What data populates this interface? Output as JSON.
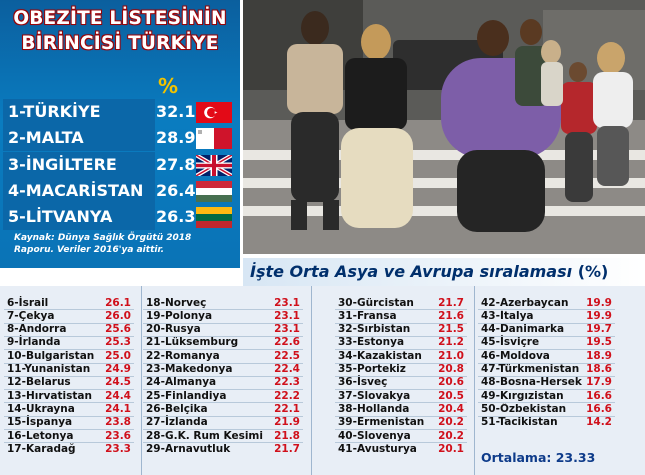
{
  "chart_data": [
    {
      "type": "table",
      "title": "OBEZİTE LİSTESİNİN BİRİNCİSİ TÜRKİYE",
      "title_line1": "OBEZİTE LİSTESİNİN",
      "title_line2": "BİRİNCİSİ TÜRKİYE",
      "value_header": "%",
      "rows": [
        {
          "label": "1-TÜRKİYE",
          "value": "32.1",
          "flag": "turkey-flag-icon"
        },
        {
          "label": "2-MALTA",
          "value": "28.9",
          "flag": "malta-flag-icon"
        },
        {
          "label": "3-İNGİLTERE",
          "value": "27.8",
          "flag": "uk-flag-icon"
        },
        {
          "label": "4-MACARİSTAN",
          "value": "26.4",
          "flag": "hungary-flag-icon"
        },
        {
          "label": "5-LİTVANYA",
          "value": "26.3",
          "flag": "lithuania-flag-icon"
        }
      ],
      "source": "Kaynak: Dünya Sağlık Örgütü 2018 Raporu. Veriler 2016'ya aittir.",
      "source_line1": "Kaynak: Dünya Sağlık Örgütü 2018",
      "source_line2": "Raporu. Veriler 2016'ya aittir."
    },
    {
      "type": "table",
      "title": "İşte Orta Asya ve Avrupa sıralaması",
      "title_suffix": "(%)",
      "average_label": "Ortalama: 23.33",
      "columns": [
        [
          {
            "label": "6-İsrail",
            "value": "26.1"
          },
          {
            "label": "7-Çekya",
            "value": "26.0"
          },
          {
            "label": "8-Andorra",
            "value": "25.6"
          },
          {
            "label": "9-İrlanda",
            "value": "25.3"
          },
          {
            "label": "10-Bulgaristan",
            "value": "25.0"
          },
          {
            "label": "11-Yunanistan",
            "value": "24.9"
          },
          {
            "label": "12-Belarus",
            "value": "24.5"
          },
          {
            "label": "13-Hırvatistan",
            "value": "24.4"
          },
          {
            "label": "14-Ukrayna",
            "value": "24.1"
          },
          {
            "label": "15-İspanya",
            "value": "23.8"
          },
          {
            "label": "16-Letonya",
            "value": "23.6"
          },
          {
            "label": "17-Karadağ",
            "value": "23.3"
          }
        ],
        [
          {
            "label": "18-Norveç",
            "value": "23.1"
          },
          {
            "label": "19-Polonya",
            "value": "23.1"
          },
          {
            "label": "20-Rusya",
            "value": "23.1"
          },
          {
            "label": "21-Lüksemburg",
            "value": "22.6"
          },
          {
            "label": "22-Romanya",
            "value": "22.5"
          },
          {
            "label": "23-Makedonya",
            "value": "22.4"
          },
          {
            "label": "24-Almanya",
            "value": "22.3"
          },
          {
            "label": "25-Finlandiya",
            "value": "22.2"
          },
          {
            "label": "26-Belçika",
            "value": "22.1"
          },
          {
            "label": "27-İzlanda",
            "value": "21.9"
          },
          {
            "label": "28-G.K. Rum Kesimi",
            "value": "21.8"
          },
          {
            "label": "29-Arnavutluk",
            "value": "21.7"
          }
        ],
        [
          {
            "label": "30-Gürcistan",
            "value": "21.7"
          },
          {
            "label": "31-Fransa",
            "value": "21.6"
          },
          {
            "label": "32-Sırbistan",
            "value": "21.5"
          },
          {
            "label": "33-Estonya",
            "value": "21.2"
          },
          {
            "label": "34-Kazakistan",
            "value": "21.0"
          },
          {
            "label": "35-Portekiz",
            "value": "20.8"
          },
          {
            "label": "36-İsveç",
            "value": "20.6"
          },
          {
            "label": "37-Slovakya",
            "value": "20.5"
          },
          {
            "label": "38-Hollanda",
            "value": "20.4"
          },
          {
            "label": "39-Ermenistan",
            "value": "20.2"
          },
          {
            "label": "40-Slovenya",
            "value": "20.2"
          },
          {
            "label": "41-Avusturya",
            "value": "20.1"
          }
        ],
        [
          {
            "label": "42-Azerbaycan",
            "value": "19.9"
          },
          {
            "label": "43-İtalya",
            "value": "19.9"
          },
          {
            "label": "44-Danimarka",
            "value": "19.7"
          },
          {
            "label": "45-İsviçre",
            "value": "19.5"
          },
          {
            "label": "46-Moldova",
            "value": "18.9"
          },
          {
            "label": "47-Türkmenistan",
            "value": "18.6"
          },
          {
            "label": "48-Bosna-Hersek",
            "value": "17.9"
          },
          {
            "label": "49-Kırgızistan",
            "value": "16.6"
          },
          {
            "label": "50-Özbekistan",
            "value": "16.6"
          },
          {
            "label": "51-Tacikistan",
            "value": "14.2"
          }
        ]
      ]
    }
  ],
  "colors": {
    "panel_blue": "#0a73b6",
    "value_red": "#d0101b",
    "percent_gold": "#f2c300",
    "subtitle_navy": "#002f6c",
    "average_blue": "#0e3b8a"
  },
  "photo": {
    "subject": "people-walking-photo"
  }
}
